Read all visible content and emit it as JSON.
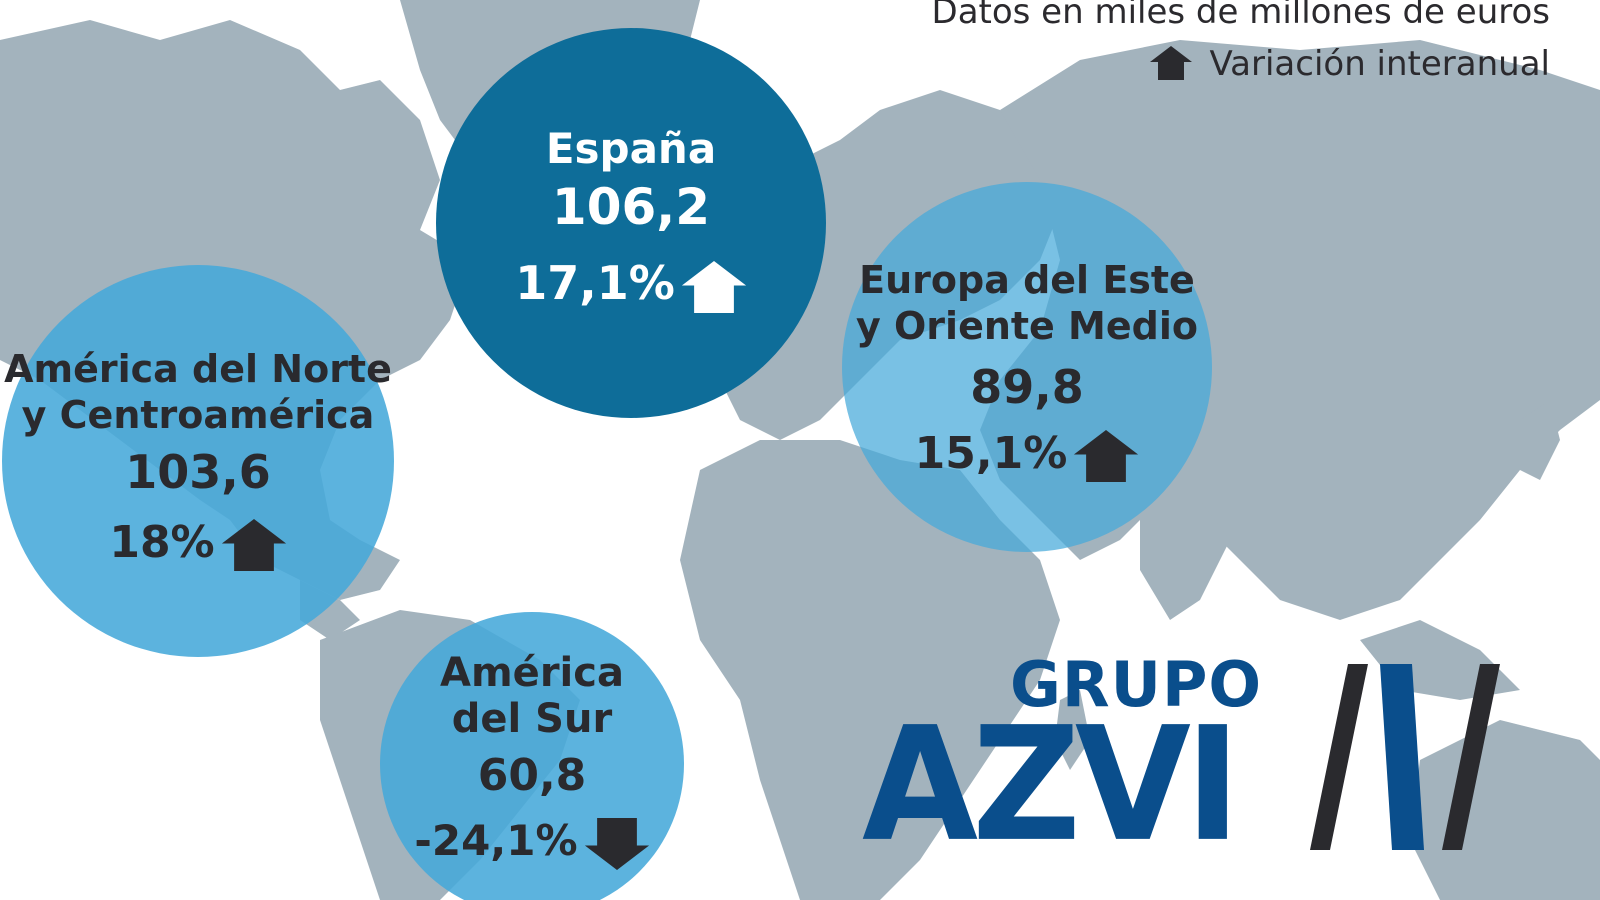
{
  "legend": {
    "units": "Datos en miles de millones de euros",
    "variation": "Variación interanual",
    "variation_icon": "house-up-arrow-icon"
  },
  "regions": [
    {
      "id": "espana",
      "name_line1": "España",
      "name_line2": "",
      "value": "106,2",
      "change": "17,1%",
      "direction": "up",
      "fill": "#0e6d99"
    },
    {
      "id": "norte",
      "name_line1": "América del Norte",
      "name_line2": "y Centroamérica",
      "value": "103,6",
      "change": "18%",
      "direction": "up",
      "fill": "#45a9d9"
    },
    {
      "id": "europa",
      "name_line1": "Europa del Este",
      "name_line2": "y Oriente Medio",
      "value": "89,8",
      "change": "15,1%",
      "direction": "up",
      "fill": "#45a9d9"
    },
    {
      "id": "sur",
      "name_line1": "América",
      "name_line2": "del Sur",
      "value": "60,8",
      "change": "-24,1%",
      "direction": "down",
      "fill": "#45a9d9"
    }
  ],
  "logo": {
    "line1": "GRUPO",
    "line2": "AZVI",
    "color_blue": "#0a4e8c",
    "color_dark": "#2a2a2e"
  },
  "colors": {
    "land": "#a3b3bd",
    "sea": "#ffffff",
    "arrow": "#2a2a2e"
  }
}
